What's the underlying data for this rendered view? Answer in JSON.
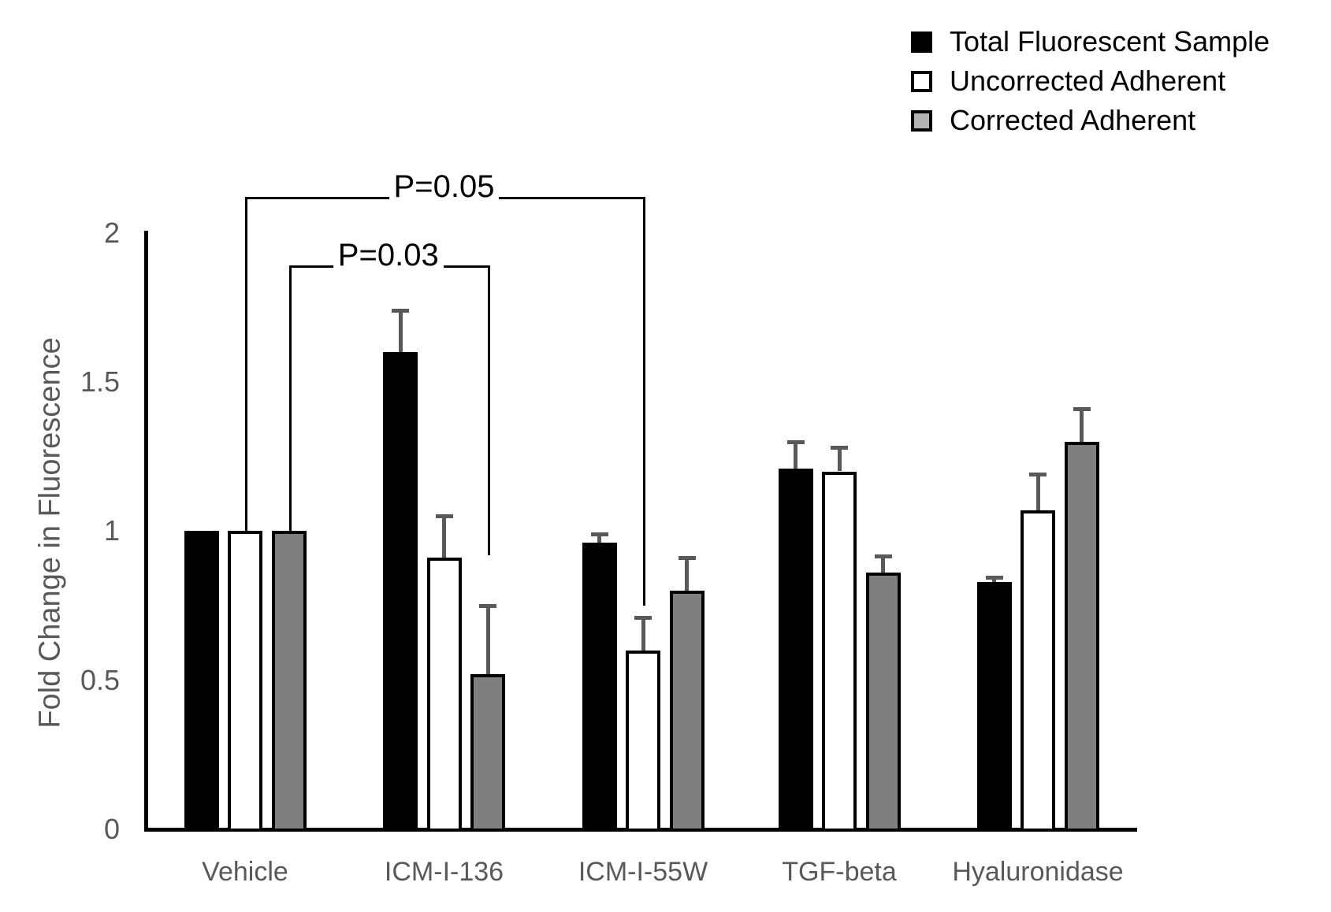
{
  "legend": {
    "items": [
      {
        "label": "Total Fluorescent Sample",
        "swatch_color": "#000000"
      },
      {
        "label": "Uncorrected Adherent",
        "swatch_color": "#ffffff"
      },
      {
        "label": "Corrected Adherent",
        "swatch_color": "#b3b3b3"
      }
    ]
  },
  "chart_data": {
    "type": "bar",
    "title": "",
    "xlabel": "",
    "ylabel": "Fold Change  in Fluorescence",
    "ylim": [
      0,
      2
    ],
    "yticks": [
      0,
      0.5,
      1,
      1.5,
      2
    ],
    "ytick_labels": [
      "0",
      "0.5",
      "1",
      "1.5",
      "2"
    ],
    "grid": false,
    "legend_position": "top-right",
    "categories": [
      "Vehicle",
      "ICM-I-136",
      "ICM-I-55W",
      "TGF-beta",
      "Hyaluronidase"
    ],
    "series": [
      {
        "name": "Total Fluorescent Sample",
        "color": "#000000",
        "values": [
          1.0,
          1.6,
          0.96,
          1.21,
          0.83
        ],
        "errors_plus": [
          0,
          0.14,
          0.03,
          0.09,
          0.015
        ]
      },
      {
        "name": "Uncorrected Adherent",
        "color": "#ffffff",
        "values": [
          1.0,
          0.91,
          0.6,
          1.2,
          1.07
        ],
        "errors_plus": [
          0,
          0.14,
          0.11,
          0.08,
          0.12
        ]
      },
      {
        "name": "Corrected Adherent",
        "color": "#7f7f7f",
        "values": [
          1.0,
          0.52,
          0.8,
          0.86,
          1.3
        ],
        "errors_plus": [
          0,
          0.23,
          0.11,
          0.055,
          0.11
        ]
      }
    ],
    "bar_border_color": "#000000",
    "error_bar_color": "#595959",
    "significance": [
      {
        "label": "P=0.05",
        "from_category": "Vehicle",
        "from_series": "Uncorrected Adherent",
        "to_category": "ICM-I-55W",
        "to_series": "Uncorrected Adherent",
        "bracket_y_value": 2.12,
        "left_leg_bottom_value": 1.0,
        "right_leg_bottom_value": 0.75
      },
      {
        "label": "P=0.03",
        "from_category": "Vehicle",
        "from_series": "Corrected Adherent",
        "to_category": "ICM-I-136",
        "to_series": "Corrected Adherent",
        "bracket_y_value": 1.89,
        "left_leg_bottom_value": 1.0,
        "right_leg_bottom_value": 0.92
      }
    ]
  }
}
